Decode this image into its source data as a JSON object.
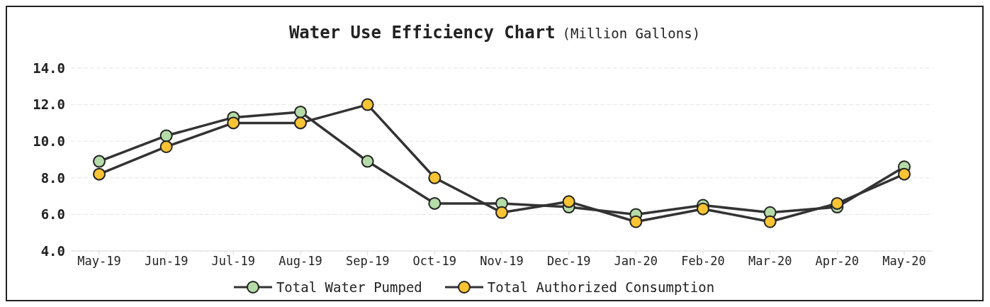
{
  "chart_data": {
    "type": "line",
    "title": "Water Use Efficiency Chart",
    "subtitle": "(Million Gallons)",
    "categories": [
      "May-19",
      "Jun-19",
      "Jul-19",
      "Aug-19",
      "Sep-19",
      "Oct-19",
      "Nov-19",
      "Dec-19",
      "Jan-20",
      "Feb-20",
      "Mar-20",
      "Apr-20",
      "May-20"
    ],
    "series": [
      {
        "name": "Total Water Pumped",
        "color": "#b5dba8",
        "values": [
          8.9,
          10.3,
          11.3,
          11.6,
          8.9,
          6.6,
          6.6,
          6.4,
          6.0,
          6.5,
          6.1,
          6.4,
          8.6
        ]
      },
      {
        "name": "Total Authorized Consumption",
        "color": "#f9c433",
        "values": [
          8.2,
          9.7,
          11.0,
          11.0,
          12.0,
          8.0,
          6.1,
          6.7,
          5.6,
          6.3,
          5.6,
          6.6,
          8.2
        ]
      }
    ],
    "ylim": [
      4,
      14
    ],
    "yticks": [
      {
        "value": 4,
        "label": "4.0"
      },
      {
        "value": 6,
        "label": "6.0"
      },
      {
        "value": 8,
        "label": "8.0"
      },
      {
        "value": 10,
        "label": "10.0"
      },
      {
        "value": 12,
        "label": "12.0"
      },
      {
        "value": 14,
        "label": "14.0"
      }
    ],
    "grid": "y",
    "legend": "bottom",
    "marker": "circle",
    "line_style": "solid"
  }
}
